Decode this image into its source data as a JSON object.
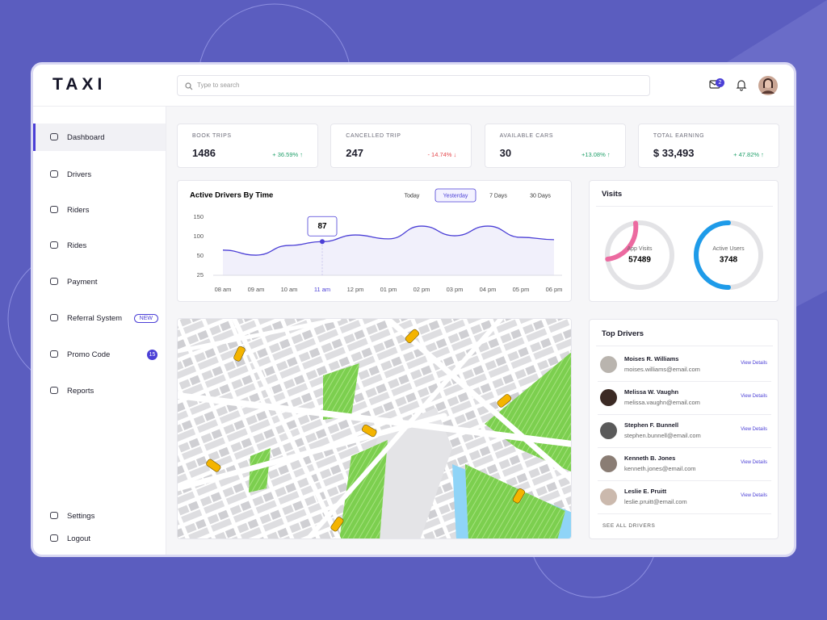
{
  "brand": "TAXI",
  "search_placeholder": "Type to search",
  "notification_count": "2",
  "nav": [
    {
      "label": "Dashboard",
      "active": true
    },
    {
      "label": "Drivers"
    },
    {
      "label": "Riders"
    },
    {
      "label": "Rides"
    },
    {
      "label": "Payment"
    },
    {
      "label": "Referral System",
      "badge": "NEW",
      "badge_style": "outline"
    },
    {
      "label": "Promo Code",
      "badge": "15",
      "badge_style": "filled"
    },
    {
      "label": "Reports"
    }
  ],
  "nav_bottom": [
    "Settings",
    "Logout"
  ],
  "stats": [
    {
      "label": "BOOK TRIPS",
      "value": "1486",
      "change": "+ 36.59% ↑",
      "trend": "up"
    },
    {
      "label": "CANCELLED TRIP",
      "value": "247",
      "change": "- 14.74% ↓",
      "trend": "down"
    },
    {
      "label": "AVAILABLE CARS",
      "value": "30",
      "change": "+13.08% ↑",
      "trend": "up"
    },
    {
      "label": "TOTAL EARNING",
      "value": "$ 33,493",
      "change": "+ 47.82% ↑",
      "trend": "up"
    }
  ],
  "chart_data": {
    "type": "line",
    "title": "Active Drivers By Time",
    "filters": [
      "Today",
      "Yesterday",
      "7 Days",
      "30 Days"
    ],
    "active_filter": 1,
    "categories": [
      "08 am",
      "09 am",
      "10 am",
      "11 am",
      "12 pm",
      "01 pm",
      "02 pm",
      "03 pm",
      "04 pm",
      "05 pm",
      "06 pm"
    ],
    "values": [
      65,
      52,
      77,
      87,
      104,
      94,
      127,
      102,
      127,
      98,
      92
    ],
    "highlight_index": 3,
    "color": "#4b3fd6",
    "ylim": [
      25,
      150
    ],
    "yticks": [
      25,
      50,
      100,
      150
    ],
    "grid": false
  },
  "visits": {
    "title": "Visits",
    "items": [
      {
        "label": "App Visits",
        "value": "57489",
        "color": "#ec6aa0"
      },
      {
        "label": "Active Users",
        "value": "3748",
        "color": "#1e9be9"
      }
    ]
  },
  "top_drivers": {
    "title": "Top Drivers",
    "action": "View Details",
    "footer": "SEE ALL DRIVERS",
    "drivers": [
      {
        "name": "Moises R. Williams",
        "email": "moises.williams@email.com"
      },
      {
        "name": "Melissa W. Vaughn",
        "email": "melissa.vaughn@email.com"
      },
      {
        "name": "Stephen F. Bunnell",
        "email": "stephen.bunnell@email.com"
      },
      {
        "name": "Kenneth B. Jones",
        "email": "kenneth.jones@email.com"
      },
      {
        "name": "Leslie E. Pruitt",
        "email": "leslie.pruitt@email.com"
      }
    ]
  }
}
